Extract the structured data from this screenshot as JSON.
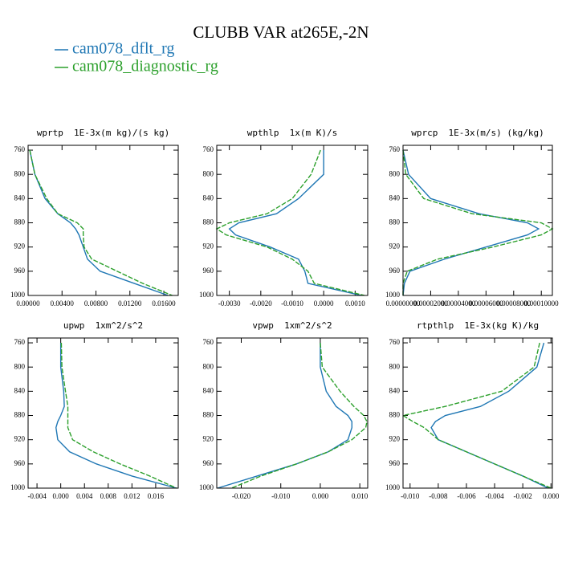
{
  "title": "CLUBB VAR at265E,-2N",
  "chart_data": [
    {
      "type": "line",
      "title": "wprtp  1E-3x(m kg)/(s kg)",
      "y": [
        760,
        800,
        840,
        865,
        880,
        890,
        900,
        920,
        940,
        960,
        980,
        1000
      ],
      "series": [
        {
          "name": "cam078_dflt_rg",
          "color": "#1f77b4",
          "values": [
            0.0002,
            0.0008,
            0.002,
            0.0035,
            0.005,
            0.0056,
            0.006,
            0.0065,
            0.007,
            0.0085,
            0.0125,
            0.0165
          ]
        },
        {
          "name": "cam078_diagnostic_rg",
          "color": "#2ca02c",
          "values": [
            0.0002,
            0.0008,
            0.0022,
            0.0035,
            0.0058,
            0.0065,
            0.0065,
            0.0066,
            0.0075,
            0.0105,
            0.0135,
            0.017
          ]
        }
      ],
      "xlim": [
        0,
        0.0177
      ],
      "ylim": [
        1000,
        752
      ],
      "xticks": [
        {
          "value": 0,
          "label": "0.00000"
        },
        {
          "value": 0.004,
          "label": "0.00400"
        },
        {
          "value": 0.008,
          "label": "0.00800"
        },
        {
          "value": 0.012,
          "label": "0.01200"
        },
        {
          "value": 0.016,
          "label": "0.01600"
        }
      ],
      "yticks": [
        760,
        800,
        840,
        880,
        920,
        960,
        1000
      ]
    },
    {
      "type": "line",
      "title": "wpthlp  1x(m K)/s",
      "y": [
        760,
        800,
        840,
        865,
        880,
        890,
        900,
        920,
        940,
        960,
        980,
        1000
      ],
      "series": [
        {
          "color": "#1f77b4",
          "values": [
            0.0,
            0.0,
            -0.0008,
            -0.0015,
            -0.0027,
            -0.003,
            -0.0028,
            -0.0017,
            -0.0008,
            -0.0006,
            -0.0005,
            0.0012
          ]
        },
        {
          "color": "#2ca02c",
          "values": [
            -0.0001,
            -0.0004,
            -0.001,
            -0.0018,
            -0.003,
            -0.0034,
            -0.0031,
            -0.0018,
            -0.001,
            -0.0005,
            -0.0003,
            0.0013
          ]
        }
      ],
      "xlim": [
        -0.0034,
        0.0014
      ],
      "ylim": [
        1000,
        752
      ],
      "xticks": [
        {
          "value": -0.003,
          "label": "-0.0030"
        },
        {
          "value": -0.002,
          "label": "-0.0020"
        },
        {
          "value": -0.001,
          "label": "-0.0010"
        },
        {
          "value": 0,
          "label": "0.0000"
        },
        {
          "value": 0.001,
          "label": "0.0010"
        }
      ],
      "yticks": [
        760,
        800,
        840,
        880,
        920,
        960,
        1000
      ]
    },
    {
      "type": "line",
      "title": "wprcp  1E-3x(m/s) (kg/kg)",
      "y": [
        760,
        800,
        840,
        865,
        880,
        890,
        900,
        920,
        940,
        960,
        980,
        1000
      ],
      "series": [
        {
          "color": "#1f77b4",
          "values": [
            0.0,
            4e-06,
            2e-05,
            5.5e-05,
            9e-05,
            9.8e-05,
            9e-05,
            6e-05,
            3e-05,
            5e-06,
            1e-06,
            0.0
          ]
        },
        {
          "color": "#2ca02c",
          "values": [
            0.0,
            2e-06,
            1.5e-05,
            5e-05,
            0.0001,
            0.000108,
            0.0001,
            6.5e-05,
            2.5e-05,
            3e-06,
            0.0,
            0.0
          ]
        }
      ],
      "xlim": [
        0,
        0.000108
      ],
      "ylim": [
        1000,
        752
      ],
      "xticks": [
        {
          "value": 0,
          "label": "0.00000000"
        },
        {
          "value": 2e-05,
          "label": "0.00002000"
        },
        {
          "value": 4e-05,
          "label": "0.00004000"
        },
        {
          "value": 6e-05,
          "label": "0.00006000"
        },
        {
          "value": 8e-05,
          "label": "0.00008000"
        },
        {
          "value": 0.0001,
          "label": "0.00010000"
        }
      ],
      "yticks": [
        760,
        800,
        840,
        880,
        920,
        960,
        1000
      ]
    },
    {
      "type": "line",
      "title": "upwp  1xm^2/s^2",
      "y": [
        760,
        800,
        840,
        865,
        880,
        890,
        900,
        920,
        940,
        960,
        980,
        1000
      ],
      "series": [
        {
          "color": "#1f77b4",
          "values": [
            0.0,
            0.0,
            0.0005,
            0.0006,
            0.0,
            -0.0005,
            -0.0008,
            -0.0005,
            0.0015,
            0.006,
            0.012,
            0.0195
          ]
        },
        {
          "color": "#2ca02c",
          "values": [
            0.0001,
            0.0002,
            0.0008,
            0.0012,
            0.0012,
            0.0012,
            0.0012,
            0.002,
            0.0055,
            0.01,
            0.015,
            0.0195
          ]
        }
      ],
      "xlim": [
        -0.0055,
        0.0198
      ],
      "ylim": [
        1000,
        752
      ],
      "xticks": [
        {
          "value": -0.004,
          "label": "-0.004"
        },
        {
          "value": 0,
          "label": "0.000"
        },
        {
          "value": 0.004,
          "label": "0.004"
        },
        {
          "value": 0.008,
          "label": "0.008"
        },
        {
          "value": 0.012,
          "label": "0.012"
        },
        {
          "value": 0.016,
          "label": "0.016"
        }
      ],
      "yticks": [
        760,
        800,
        840,
        880,
        920,
        960,
        1000
      ]
    },
    {
      "type": "line",
      "title": "vpwp  1xm^2/s^2",
      "y": [
        760,
        800,
        840,
        865,
        880,
        890,
        900,
        920,
        940,
        960,
        980,
        1000
      ],
      "series": [
        {
          "color": "#1f77b4",
          "values": [
            0.0,
            0.0,
            0.0015,
            0.004,
            0.007,
            0.008,
            0.008,
            0.007,
            0.002,
            -0.006,
            -0.016,
            -0.026
          ]
        },
        {
          "color": "#2ca02c",
          "values": [
            0.0,
            0.0005,
            0.005,
            0.0085,
            0.011,
            0.0118,
            0.0115,
            0.008,
            0.002,
            -0.006,
            -0.015,
            -0.0225
          ]
        }
      ],
      "xlim": [
        -0.0262,
        0.012
      ],
      "ylim": [
        1000,
        752
      ],
      "xticks": [
        {
          "value": -0.02,
          "label": "-0.020"
        },
        {
          "value": -0.01,
          "label": "-0.010"
        },
        {
          "value": 0,
          "label": "0.000"
        },
        {
          "value": 0.01,
          "label": "0.010"
        }
      ],
      "yticks": [
        760,
        800,
        840,
        880,
        920,
        960,
        1000
      ]
    },
    {
      "type": "line",
      "title": "rtpthlp  1E-3x(kg K)/kg",
      "y": [
        760,
        800,
        840,
        865,
        880,
        890,
        900,
        920,
        940,
        960,
        980,
        1000
      ],
      "series": [
        {
          "color": "#1f77b4",
          "values": [
            -0.0005,
            -0.001,
            -0.003,
            -0.005,
            -0.0075,
            -0.0082,
            -0.0085,
            -0.008,
            -0.006,
            -0.004,
            -0.002,
            -0.0002
          ]
        },
        {
          "color": "#2ca02c",
          "values": [
            -0.0008,
            -0.0012,
            -0.0035,
            -0.0075,
            -0.0105,
            -0.0098,
            -0.009,
            -0.008,
            -0.006,
            -0.004,
            -0.002,
            0.0
          ]
        }
      ],
      "xlim": [
        -0.0105,
        0.0001
      ],
      "ylim": [
        1000,
        752
      ],
      "xticks": [
        {
          "value": -0.01,
          "label": "-0.010"
        },
        {
          "value": -0.008,
          "label": "-0.008"
        },
        {
          "value": -0.006,
          "label": "-0.006"
        },
        {
          "value": -0.004,
          "label": "-0.004"
        },
        {
          "value": -0.002,
          "label": "-0.002"
        },
        {
          "value": 0,
          "label": "0.000"
        }
      ],
      "yticks": [
        760,
        800,
        840,
        880,
        920,
        960,
        1000
      ]
    }
  ]
}
